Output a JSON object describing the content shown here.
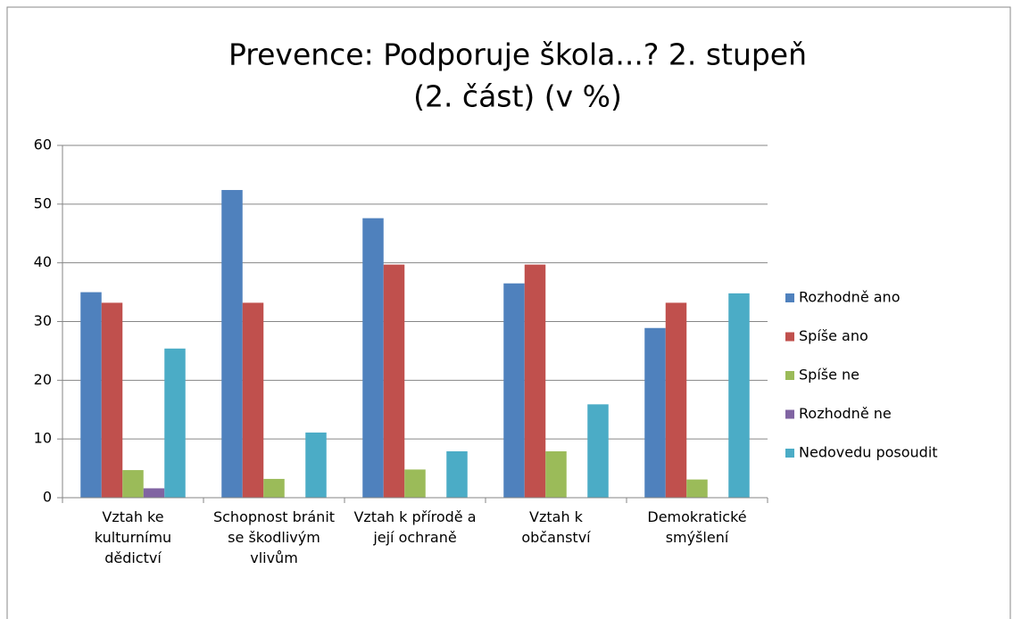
{
  "chart_data": {
    "type": "bar",
    "title": [
      "Prevence: Podporuje škola...? 2. stupeň",
      "(2. část) (v %)"
    ],
    "categories": [
      "Vztah ke kulturnímu dědictví",
      "Schopnost bránit se škodlivým vlivům",
      "Vztah k přírodě a její ochraně",
      "Vztah k občanství",
      "Demokratické smýšlení"
    ],
    "series": [
      {
        "name": "Rozhodně ano",
        "color": "#4f81bd",
        "values": [
          35,
          52.4,
          47.6,
          36.5,
          28.9
        ]
      },
      {
        "name": "Spíše ano",
        "color": "#c0504d",
        "values": [
          33.2,
          33.2,
          39.7,
          39.7,
          33.2
        ]
      },
      {
        "name": "Spíše ne",
        "color": "#9bbb59",
        "values": [
          4.7,
          3.2,
          4.8,
          7.9,
          3.1
        ]
      },
      {
        "name": "Rozhodně ne",
        "color": "#8064a2",
        "values": [
          1.6,
          0,
          0,
          0,
          0
        ]
      },
      {
        "name": "Nedovedu posoudit",
        "color": "#4bacc6",
        "values": [
          25.4,
          11.1,
          7.9,
          15.9,
          34.8
        ]
      }
    ],
    "ylim": [
      0,
      60
    ],
    "yticks": [
      0,
      10,
      20,
      30,
      40,
      50,
      60
    ],
    "grid": true,
    "legend": "right"
  }
}
